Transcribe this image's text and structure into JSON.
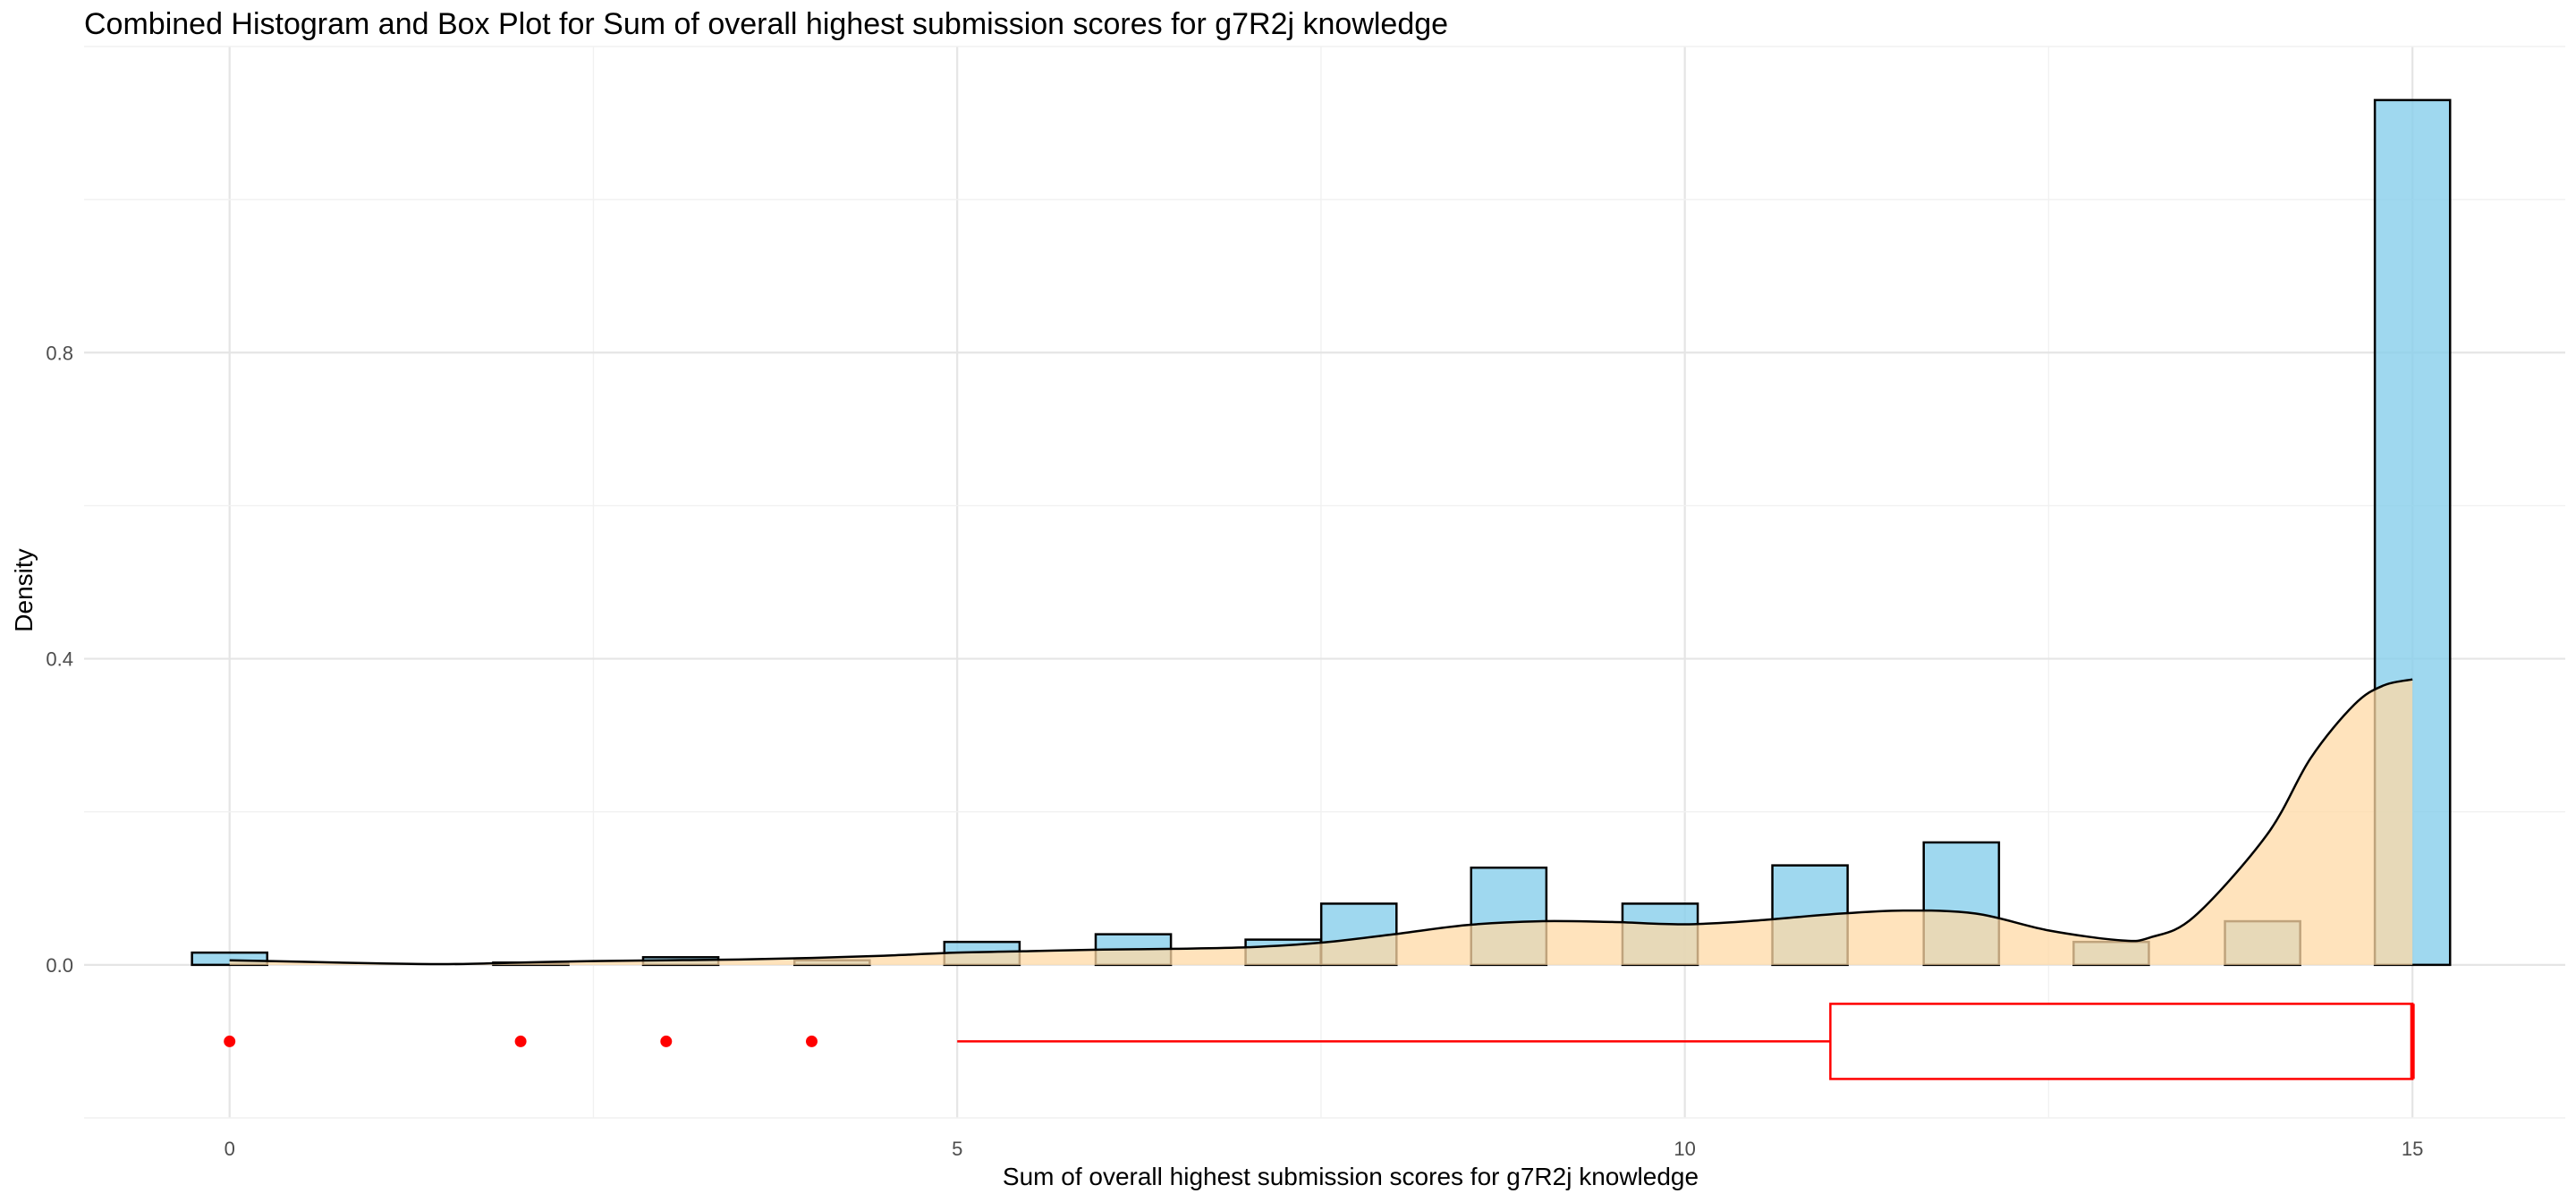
{
  "chart_data": {
    "type": "bar",
    "title": "Combined Histogram and Box Plot for Sum of overall highest submission scores for g7R2j knowledge",
    "xlabel": "Sum of overall highest submission scores for g7R2j knowledge",
    "ylabel": "Density",
    "xlim": [
      -1,
      16.05
    ],
    "ylim": [
      -0.2,
      1.2
    ],
    "x_ticks": [
      0,
      5,
      10,
      15
    ],
    "x_tick_labels": [
      "0",
      "5",
      "10",
      "15"
    ],
    "y_ticks": [
      0.0,
      0.4,
      0.8
    ],
    "y_tick_labels": [
      "0.0",
      "0.4",
      "0.8"
    ],
    "grid": true,
    "histogram": {
      "bin_width": 0.517,
      "bins": [
        {
          "x": 0.0,
          "density": 0.016
        },
        {
          "x": 2.07,
          "density": 0.003
        },
        {
          "x": 3.1,
          "density": 0.01
        },
        {
          "x": 4.14,
          "density": 0.006
        },
        {
          "x": 5.17,
          "density": 0.03
        },
        {
          "x": 6.21,
          "density": 0.04
        },
        {
          "x": 7.24,
          "density": 0.033
        },
        {
          "x": 7.76,
          "density": 0.08
        },
        {
          "x": 8.79,
          "density": 0.127
        },
        {
          "x": 9.83,
          "density": 0.08
        },
        {
          "x": 10.86,
          "density": 0.13
        },
        {
          "x": 11.9,
          "density": 0.16
        },
        {
          "x": 12.93,
          "density": 0.03
        },
        {
          "x": 13.97,
          "density": 0.057
        },
        {
          "x": 15.0,
          "density": 1.13
        }
      ],
      "fill": "#87CEEB",
      "stroke": "#000000"
    },
    "density_curve": {
      "x": [
        0,
        0.5,
        1,
        1.5,
        2,
        2.5,
        3,
        3.5,
        4,
        4.5,
        5,
        5.5,
        6,
        6.5,
        7,
        7.5,
        8,
        8.5,
        9,
        9.5,
        10,
        10.5,
        11,
        11.5,
        12,
        12.5,
        13,
        13.2,
        13.5,
        14,
        14.3,
        14.6,
        14.8,
        15
      ],
      "y": [
        0.006,
        0.004,
        0.002,
        0.001,
        0.003,
        0.005,
        0.006,
        0.007,
        0.009,
        0.012,
        0.016,
        0.018,
        0.02,
        0.021,
        0.023,
        0.029,
        0.04,
        0.052,
        0.057,
        0.056,
        0.053,
        0.058,
        0.066,
        0.071,
        0.067,
        0.045,
        0.032,
        0.036,
        0.063,
        0.17,
        0.27,
        0.34,
        0.365,
        0.373
      ],
      "fill": "#FFDAA5",
      "stroke": "#000000"
    },
    "boxplot": {
      "min_whisker": 5,
      "q1": 11,
      "median": 15,
      "q3": 15,
      "max_whisker": 15,
      "outliers": [
        0,
        2,
        3,
        4
      ],
      "y_center": -0.1,
      "color": "#FF0000"
    }
  }
}
